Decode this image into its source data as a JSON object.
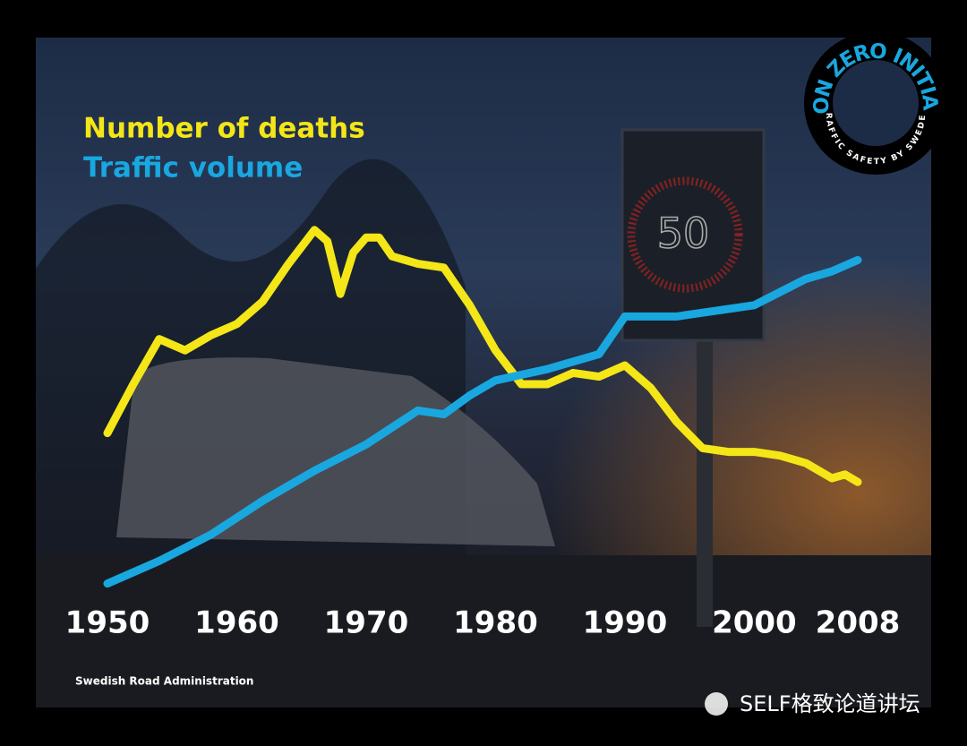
{
  "chart_data": {
    "type": "line",
    "series": [
      {
        "name": "Number of deaths",
        "color": "#f4e617",
        "x": [
          1950,
          1952,
          1954,
          1956,
          1958,
          1960,
          1962,
          1964,
          1966,
          1967,
          1968,
          1969,
          1970,
          1971,
          1972,
          1974,
          1976,
          1978,
          1980,
          1982,
          1984,
          1986,
          1988,
          1990,
          1992,
          1994,
          1996,
          1998,
          2000,
          2002,
          2004,
          2006,
          2007,
          2008
        ],
        "values": [
          42,
          55,
          67,
          64,
          68,
          71,
          77,
          87,
          96,
          93,
          79,
          90,
          94,
          94,
          89,
          87,
          86,
          76,
          64,
          55,
          55,
          58,
          57,
          60,
          54,
          45,
          38,
          37,
          37,
          36,
          34,
          30,
          31,
          29
        ]
      },
      {
        "name": "Traffic volume",
        "color": "#19a7e0",
        "x": [
          1950,
          1954,
          1958,
          1962,
          1966,
          1970,
          1974,
          1976,
          1978,
          1980,
          1984,
          1988,
          1990,
          1992,
          1994,
          1996,
          2000,
          2004,
          2006,
          2008
        ],
        "values": [
          2,
          8,
          15,
          24,
          32,
          39,
          48,
          47,
          52,
          56,
          59,
          63,
          73,
          73,
          73,
          74,
          76,
          83,
          85,
          88
        ]
      }
    ],
    "xlim": [
      1950,
      2008
    ],
    "xticks": [
      1950,
      1960,
      1970,
      1980,
      1990,
      2000,
      2008
    ],
    "ylim": [
      0,
      100
    ],
    "source": "Swedish Road Administration"
  },
  "logo": {
    "top": "VISION ZERO INITIATIVE",
    "bottom": "TRAFFIC SAFETY BY SWEDEN"
  },
  "sign": "50",
  "watermark": "SELF格致论道讲坛"
}
